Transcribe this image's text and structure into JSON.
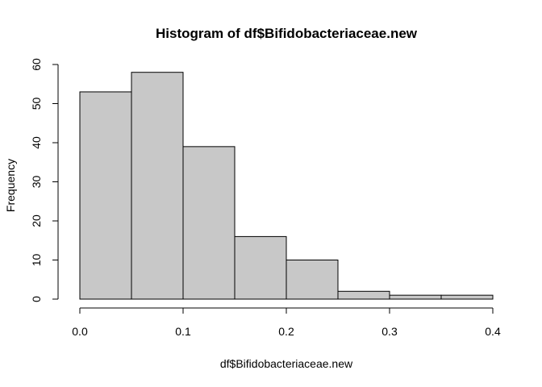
{
  "chart_data": {
    "type": "bar",
    "title": "Histogram of df$Bifidobacteriaceae.new",
    "xlabel": "df$Bifidobacteriaceae.new",
    "ylabel": "Frequency",
    "bins": [
      {
        "x0": 0.0,
        "x1": 0.05,
        "count": 53
      },
      {
        "x0": 0.05,
        "x1": 0.1,
        "count": 58
      },
      {
        "x0": 0.1,
        "x1": 0.15,
        "count": 39
      },
      {
        "x0": 0.15,
        "x1": 0.2,
        "count": 16
      },
      {
        "x0": 0.2,
        "x1": 0.25,
        "count": 10
      },
      {
        "x0": 0.25,
        "x1": 0.3,
        "count": 2
      },
      {
        "x0": 0.3,
        "x1": 0.35,
        "count": 1
      },
      {
        "x0": 0.35,
        "x1": 0.4,
        "count": 1
      }
    ],
    "xlim": [
      0.0,
      0.4
    ],
    "ylim": [
      0,
      60
    ],
    "x_ticks": [
      "0.0",
      "0.1",
      "0.2",
      "0.3",
      "0.4"
    ],
    "y_ticks": [
      "0",
      "10",
      "20",
      "30",
      "40",
      "50",
      "60"
    ],
    "colors": {
      "bar_fill": "#c8c8c8",
      "bar_stroke": "#000000"
    },
    "grid": false,
    "legend": "none"
  }
}
